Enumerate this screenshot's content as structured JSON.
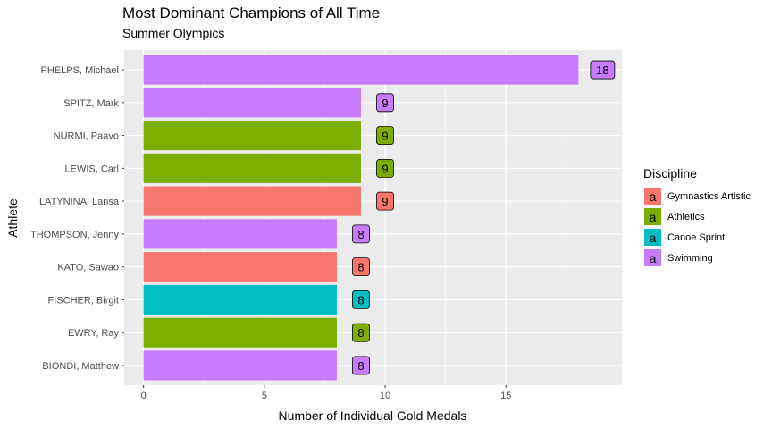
{
  "chart_data": {
    "type": "bar",
    "orientation": "horizontal",
    "title": "Most Dominant Champions of All Time",
    "subtitle": "Summer Olympics",
    "xlabel": "Number of Individual Gold Medals",
    "ylabel": "Athlete",
    "xlim": [
      -0.8,
      19.8
    ],
    "xticks": [
      0,
      5,
      10,
      15
    ],
    "grid": true,
    "legend_position": "right",
    "legend_title": "Discipline",
    "legend_key_glyph": "a",
    "categories": [
      "PHELPS, Michael",
      "SPITZ, Mark",
      "NURMI, Paavo",
      "LEWIS, Carl",
      "LATYNINA, Larisa",
      "THOMPSON, Jenny",
      "KATO, Sawao",
      "FISCHER, Birgit",
      "EWRY, Ray",
      "BIONDI, Matthew"
    ],
    "values": [
      18,
      9,
      9,
      9,
      9,
      8,
      8,
      8,
      8,
      8
    ],
    "labels": [
      "18",
      "9",
      "9",
      "9",
      "9",
      "8",
      "8",
      "8",
      "8",
      "8"
    ],
    "discipline": [
      "Swimming",
      "Swimming",
      "Athletics",
      "Athletics",
      "Gymnastics Artistic",
      "Swimming",
      "Gymnastics Artistic",
      "Canoe Sprint",
      "Athletics",
      "Swimming"
    ],
    "series": [
      {
        "name": "Gymnastics Artistic",
        "color": "#F8766D"
      },
      {
        "name": "Athletics",
        "color": "#7CAE00"
      },
      {
        "name": "Canoe Sprint",
        "color": "#00BFC4"
      },
      {
        "name": "Swimming",
        "color": "#C77CFF"
      }
    ]
  }
}
